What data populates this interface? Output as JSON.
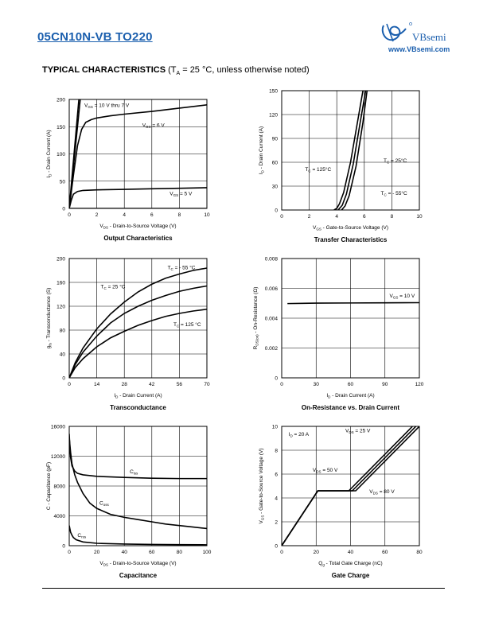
{
  "header": {
    "part_number": "05CN10N-VB TO220",
    "logo_text": "VBsemi",
    "website": "www.VBsemi.com",
    "brand_color": "#1b5fae"
  },
  "section": {
    "title": "TYPICAL CHARACTERISTICS",
    "condition_prefix": "(T",
    "condition_sub": "A",
    "condition_rest": " = 25 °C, unless otherwise noted)"
  },
  "chart_data": [
    {
      "id": "output",
      "type": "line",
      "title": "Output Characteristics",
      "xlabel": "VDS - Drain-to-Source Voltage (V)",
      "ylabel": "ID - Drain Current (A)",
      "xlim": [
        0,
        10
      ],
      "ylim": [
        0,
        200
      ],
      "xticks": [
        0,
        2,
        4,
        6,
        8,
        10
      ],
      "yticks": [
        0,
        50,
        100,
        150,
        200
      ],
      "grid": true,
      "series": [
        {
          "x": [
            0,
            0.7,
            1.2
          ],
          "y": [
            0,
            200,
            235
          ]
        },
        {
          "x": [
            0,
            0.8,
            1.3
          ],
          "y": [
            0,
            200,
            235
          ]
        },
        {
          "x": [
            0,
            0.3,
            0.6,
            0.9,
            1.2,
            1.6,
            2,
            3,
            4,
            6,
            8,
            10
          ],
          "y": [
            0,
            60,
            115,
            145,
            158,
            163,
            166,
            170,
            173,
            178,
            184,
            190
          ]
        },
        {
          "x": [
            0,
            0.15,
            0.3,
            0.6,
            1,
            2,
            4,
            6,
            8,
            10
          ],
          "y": [
            0,
            15,
            26,
            31,
            33,
            34,
            35,
            36,
            37,
            38
          ]
        },
        {
          "x": [
            0,
            10
          ],
          "y": [
            0,
            0
          ]
        }
      ],
      "annotations": [
        {
          "main": "V",
          "sub": "GS",
          "rest": " = 10 V thru 7 V",
          "x": 1.1,
          "y": 186
        },
        {
          "main": "V",
          "sub": "GS",
          "rest": " = 6 V",
          "x": 5.3,
          "y": 150
        },
        {
          "main": "V",
          "sub": "GS",
          "rest": " = 5 V",
          "x": 7.3,
          "y": 24
        }
      ]
    },
    {
      "id": "transfer",
      "type": "line",
      "title": "Transfer Characteristics",
      "xlabel": "VGS - Gate-to-Source Voltage (V)",
      "ylabel": "ID - Drain Current (A)",
      "xlim": [
        0,
        10
      ],
      "ylim": [
        0,
        150
      ],
      "xticks": [
        0,
        2,
        4,
        6,
        8,
        10
      ],
      "yticks": [
        0,
        30,
        60,
        90,
        120,
        150
      ],
      "grid": true,
      "series": [
        {
          "x": [
            3.8,
            4.0,
            4.2,
            4.5,
            5.0,
            5.5,
            5.9
          ],
          "y": [
            0,
            2,
            8,
            22,
            60,
            110,
            150
          ]
        },
        {
          "x": [
            4.1,
            4.4,
            4.7,
            5.2,
            5.7,
            6.1
          ],
          "y": [
            0,
            6,
            20,
            58,
            110,
            150
          ]
        },
        {
          "x": [
            4.35,
            4.6,
            4.9,
            5.4,
            5.9,
            6.2
          ],
          "y": [
            0,
            5,
            18,
            55,
            110,
            150
          ]
        }
      ],
      "annotations": [
        {
          "main": "T",
          "sub": "C",
          "rest": " = 125°C",
          "x": 1.7,
          "y": 49
        },
        {
          "main": "T",
          "sub": "C",
          "rest": " = 25°C",
          "x": 7.4,
          "y": 60
        },
        {
          "main": "T",
          "sub": "C",
          "rest": " = - 55°C",
          "x": 7.2,
          "y": 19
        }
      ]
    },
    {
      "id": "transconductance",
      "type": "line",
      "title": "Transconductance",
      "xlabel": "ID - Drain Current (A)",
      "ylabel": "gfs - Transconductance (S)",
      "xlim": [
        0,
        70
      ],
      "ylim": [
        0,
        200
      ],
      "xticks": [
        0,
        14,
        28,
        42,
        56,
        70
      ],
      "yticks": [
        0,
        40,
        80,
        120,
        160,
        200
      ],
      "grid": true,
      "series": [
        {
          "x": [
            0,
            3,
            7,
            14,
            21,
            28,
            35,
            42,
            49,
            56,
            63,
            70
          ],
          "y": [
            0,
            25,
            50,
            82,
            107,
            127,
            144,
            157,
            167,
            174,
            180,
            184
          ]
        },
        {
          "x": [
            0,
            3,
            7,
            14,
            21,
            28,
            35,
            42,
            49,
            56,
            63,
            70
          ],
          "y": [
            0,
            22,
            43,
            70,
            92,
            108,
            120,
            130,
            138,
            145,
            150,
            154
          ]
        },
        {
          "x": [
            0,
            3,
            7,
            14,
            21,
            28,
            35,
            42,
            49,
            56,
            63,
            70
          ],
          "y": [
            0,
            17,
            32,
            52,
            67,
            78,
            88,
            96,
            103,
            108,
            112,
            115
          ]
        }
      ],
      "annotations": [
        {
          "main": "T",
          "sub": "C",
          "rest": " = - 55 °C",
          "x": 50,
          "y": 182
        },
        {
          "main": "T",
          "sub": "C",
          "rest": " = 25 °C",
          "x": 16,
          "y": 150
        },
        {
          "main": "T",
          "sub": "C",
          "rest": " = 125 °C",
          "x": 53,
          "y": 87
        }
      ]
    },
    {
      "id": "onresistance",
      "type": "line",
      "title": "On-Resistance vs. Drain Current",
      "xlabel": "ID - Drain Current (A)",
      "ylabel": "RDS(on) - On-Resistance (Ω)",
      "xlim": [
        0,
        120
      ],
      "ylim": [
        0,
        0.008
      ],
      "xticks": [
        0,
        30,
        60,
        90,
        120
      ],
      "yticks": [
        0,
        0.002,
        0.004,
        0.006,
        0.008
      ],
      "ytick_labels": [
        "0",
        "0.002",
        "0.004",
        "0.006",
        "0.008"
      ],
      "grid": true,
      "series": [
        {
          "x": [
            5,
            30,
            60,
            90,
            120
          ],
          "y": [
            0.00498,
            0.00501,
            0.00502,
            0.00503,
            0.00504
          ]
        }
      ],
      "annotations": [
        {
          "main": "V",
          "sub": "GS",
          "rest": " = 10 V",
          "x": 94,
          "y": 0.0054
        }
      ]
    },
    {
      "id": "capacitance",
      "type": "line",
      "title": "Capacitance",
      "xlabel": "VDS - Drain-to-Source Voltage (V)",
      "ylabel": "C - Capacitance (pF)",
      "xlim": [
        0,
        100
      ],
      "ylim": [
        0,
        16000
      ],
      "xticks": [
        0,
        20,
        40,
        60,
        80,
        100
      ],
      "yticks": [
        0,
        4000,
        8000,
        12000,
        16000
      ],
      "grid": true,
      "series": [
        {
          "x": [
            0,
            0.5,
            1,
            2,
            4,
            6,
            10,
            20,
            40,
            60,
            80,
            100
          ],
          "y": [
            15000,
            13000,
            11800,
            10700,
            10000,
            9700,
            9500,
            9300,
            9150,
            9050,
            9000,
            9000
          ]
        },
        {
          "x": [
            0,
            1,
            2,
            4,
            6,
            10,
            15,
            20,
            30,
            40,
            50,
            60,
            70,
            80,
            90,
            100
          ],
          "y": [
            14500,
            12500,
            11000,
            9500,
            8500,
            7000,
            5700,
            5000,
            4200,
            3800,
            3500,
            3200,
            2900,
            2700,
            2500,
            2300
          ]
        },
        {
          "x": [
            0,
            1,
            2,
            3,
            5,
            10,
            20,
            40,
            60,
            80,
            100
          ],
          "y": [
            2700,
            1800,
            1400,
            1100,
            800,
            500,
            320,
            220,
            170,
            140,
            120
          ]
        }
      ],
      "annotations": [
        {
          "main": "C",
          "sub": "iss",
          "rest": "",
          "x": 44,
          "y": 9700
        },
        {
          "main": "C",
          "sub": "oss",
          "rest": "",
          "x": 22,
          "y": 5500
        },
        {
          "main": "C",
          "sub": "rss",
          "rest": "",
          "x": 6,
          "y": 1200
        }
      ]
    },
    {
      "id": "gatecharge",
      "type": "line",
      "title": "Gate Charge",
      "xlabel": "Qg - Total Gate Charge (nC)",
      "ylabel": "VGS - Gate-to-Source Voltage (V)",
      "xlim": [
        0,
        80
      ],
      "ylim": [
        0,
        10
      ],
      "xticks": [
        0,
        20,
        40,
        60,
        80
      ],
      "yticks": [
        0,
        2,
        4,
        6,
        8,
        10
      ],
      "grid": true,
      "series": [
        {
          "x": [
            0,
            21,
            39,
            76
          ],
          "y": [
            0,
            4.6,
            4.6,
            10
          ]
        },
        {
          "x": [
            0,
            21,
            41,
            78
          ],
          "y": [
            0,
            4.6,
            4.6,
            10
          ]
        },
        {
          "x": [
            0,
            21,
            43,
            80
          ],
          "y": [
            0,
            4.6,
            4.6,
            10
          ]
        }
      ],
      "annotations": [
        {
          "main": "I",
          "sub": "D",
          "rest": " = 20 A",
          "x": 4,
          "y": 9.2
        },
        {
          "main": "V",
          "sub": "DS",
          "rest": " = 25 V",
          "x": 37,
          "y": 9.5
        },
        {
          "main": "V",
          "sub": "DS",
          "rest": " = 50 V",
          "x": 18,
          "y": 6.2
        },
        {
          "main": "V",
          "sub": "DS",
          "rest": " = 80 V",
          "x": 51,
          "y": 4.4
        }
      ]
    }
  ]
}
